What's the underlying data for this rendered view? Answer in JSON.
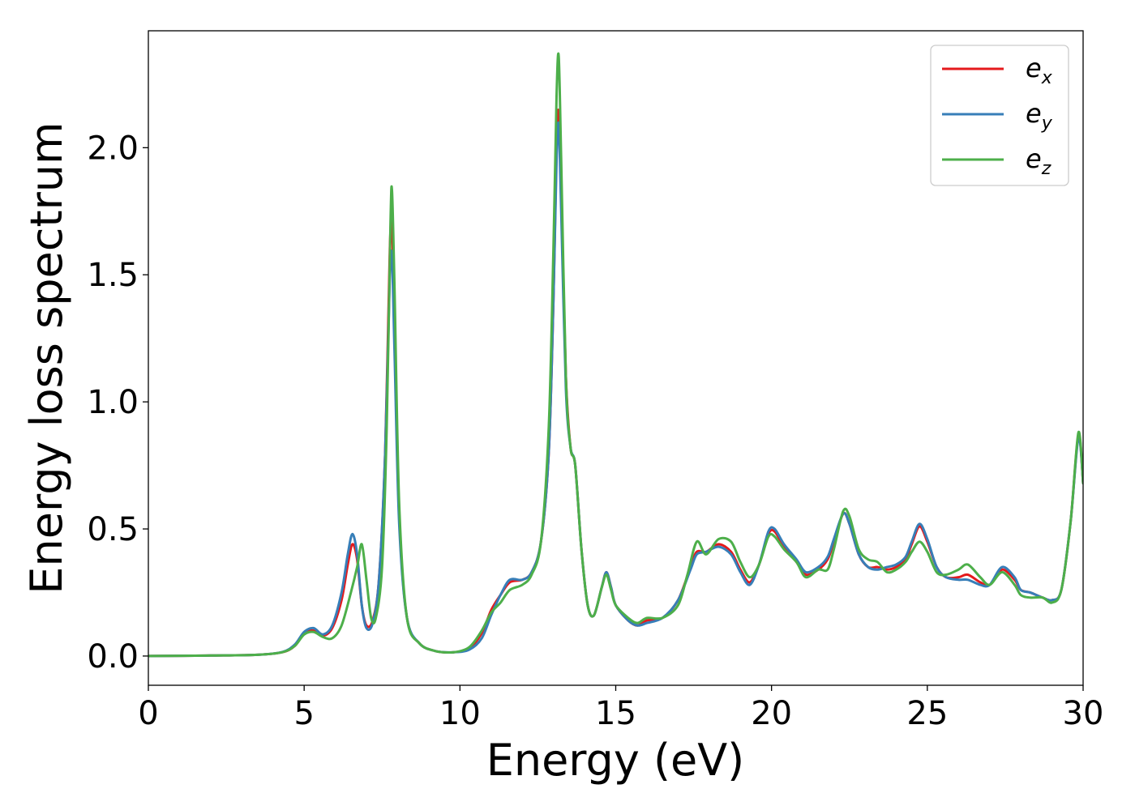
{
  "chart_data": {
    "type": "line",
    "title": "",
    "xlabel": "Energy (eV)",
    "ylabel": "Energy loss spectrum",
    "xlim": [
      0,
      30
    ],
    "ylim": [
      -0.115,
      2.46
    ],
    "xticks": [
      0,
      5,
      10,
      15,
      20,
      25,
      30
    ],
    "xtick_labels": [
      "0",
      "5",
      "10",
      "15",
      "20",
      "25",
      "30"
    ],
    "yticks": [
      0.0,
      0.5,
      1.0,
      1.5,
      2.0
    ],
    "ytick_labels": [
      "0.0",
      "0.5",
      "1.0",
      "1.5",
      "2.0"
    ],
    "grid": false,
    "legend_position": "top-right",
    "series": [
      {
        "name": "e",
        "subscript": "x",
        "color": "#e41a1c",
        "points": [
          [
            0,
            0
          ],
          [
            2,
            0.002
          ],
          [
            3.5,
            0.005
          ],
          [
            4.3,
            0.015
          ],
          [
            4.7,
            0.04
          ],
          [
            5.0,
            0.09
          ],
          [
            5.3,
            0.1
          ],
          [
            5.6,
            0.08
          ],
          [
            5.9,
            0.11
          ],
          [
            6.2,
            0.22
          ],
          [
            6.4,
            0.36
          ],
          [
            6.55,
            0.44
          ],
          [
            6.7,
            0.38
          ],
          [
            6.85,
            0.2
          ],
          [
            7.0,
            0.12
          ],
          [
            7.2,
            0.14
          ],
          [
            7.4,
            0.3
          ],
          [
            7.6,
            0.8
          ],
          [
            7.75,
            1.6
          ],
          [
            7.82,
            1.68
          ],
          [
            7.9,
            1.3
          ],
          [
            8.05,
            0.55
          ],
          [
            8.3,
            0.15
          ],
          [
            8.7,
            0.05
          ],
          [
            9.2,
            0.02
          ],
          [
            9.8,
            0.015
          ],
          [
            10.3,
            0.03
          ],
          [
            10.7,
            0.09
          ],
          [
            11.0,
            0.18
          ],
          [
            11.3,
            0.24
          ],
          [
            11.6,
            0.29
          ],
          [
            12.0,
            0.3
          ],
          [
            12.3,
            0.33
          ],
          [
            12.6,
            0.45
          ],
          [
            12.85,
            0.8
          ],
          [
            13.0,
            1.4
          ],
          [
            13.1,
            2.0
          ],
          [
            13.17,
            2.14
          ],
          [
            13.25,
            1.8
          ],
          [
            13.4,
            1.1
          ],
          [
            13.55,
            0.82
          ],
          [
            13.7,
            0.75
          ],
          [
            13.9,
            0.42
          ],
          [
            14.1,
            0.2
          ],
          [
            14.3,
            0.16
          ],
          [
            14.55,
            0.27
          ],
          [
            14.7,
            0.33
          ],
          [
            14.85,
            0.27
          ],
          [
            15.0,
            0.2
          ],
          [
            15.4,
            0.14
          ],
          [
            15.7,
            0.12
          ],
          [
            16.0,
            0.14
          ],
          [
            16.5,
            0.15
          ],
          [
            17.0,
            0.22
          ],
          [
            17.4,
            0.35
          ],
          [
            17.6,
            0.41
          ],
          [
            17.9,
            0.41
          ],
          [
            18.3,
            0.44
          ],
          [
            18.7,
            0.41
          ],
          [
            19.0,
            0.34
          ],
          [
            19.3,
            0.29
          ],
          [
            19.6,
            0.36
          ],
          [
            19.9,
            0.48
          ],
          [
            20.1,
            0.49
          ],
          [
            20.4,
            0.43
          ],
          [
            20.8,
            0.37
          ],
          [
            21.1,
            0.32
          ],
          [
            21.5,
            0.34
          ],
          [
            21.8,
            0.38
          ],
          [
            22.0,
            0.45
          ],
          [
            22.3,
            0.56
          ],
          [
            22.5,
            0.52
          ],
          [
            22.8,
            0.4
          ],
          [
            23.1,
            0.35
          ],
          [
            23.4,
            0.35
          ],
          [
            23.7,
            0.34
          ],
          [
            24.0,
            0.35
          ],
          [
            24.3,
            0.38
          ],
          [
            24.5,
            0.44
          ],
          [
            24.75,
            0.51
          ],
          [
            25.0,
            0.45
          ],
          [
            25.3,
            0.35
          ],
          [
            25.6,
            0.31
          ],
          [
            26.0,
            0.31
          ],
          [
            26.3,
            0.32
          ],
          [
            26.7,
            0.29
          ],
          [
            27.0,
            0.28
          ],
          [
            27.4,
            0.34
          ],
          [
            27.8,
            0.3
          ],
          [
            28.0,
            0.26
          ],
          [
            28.3,
            0.25
          ],
          [
            28.7,
            0.23
          ],
          [
            29.0,
            0.22
          ],
          [
            29.3,
            0.26
          ],
          [
            29.6,
            0.53
          ],
          [
            29.85,
            0.87
          ],
          [
            30.0,
            0.68
          ]
        ]
      },
      {
        "name": "e",
        "subscript": "y",
        "color": "#377eb8",
        "points": [
          [
            0,
            0
          ],
          [
            2,
            0.002
          ],
          [
            3.5,
            0.005
          ],
          [
            4.3,
            0.016
          ],
          [
            4.7,
            0.045
          ],
          [
            5.0,
            0.095
          ],
          [
            5.3,
            0.11
          ],
          [
            5.6,
            0.085
          ],
          [
            5.9,
            0.12
          ],
          [
            6.2,
            0.25
          ],
          [
            6.4,
            0.4
          ],
          [
            6.55,
            0.48
          ],
          [
            6.7,
            0.4
          ],
          [
            6.85,
            0.2
          ],
          [
            7.0,
            0.11
          ],
          [
            7.2,
            0.13
          ],
          [
            7.4,
            0.3
          ],
          [
            7.6,
            0.8
          ],
          [
            7.75,
            1.5
          ],
          [
            7.82,
            1.56
          ],
          [
            7.9,
            1.2
          ],
          [
            8.05,
            0.52
          ],
          [
            8.3,
            0.15
          ],
          [
            8.7,
            0.05
          ],
          [
            9.2,
            0.02
          ],
          [
            9.8,
            0.015
          ],
          [
            10.3,
            0.025
          ],
          [
            10.7,
            0.07
          ],
          [
            11.0,
            0.16
          ],
          [
            11.3,
            0.24
          ],
          [
            11.6,
            0.3
          ],
          [
            12.0,
            0.3
          ],
          [
            12.3,
            0.33
          ],
          [
            12.6,
            0.45
          ],
          [
            12.85,
            0.8
          ],
          [
            13.0,
            1.4
          ],
          [
            13.1,
            1.95
          ],
          [
            13.17,
            2.09
          ],
          [
            13.25,
            1.75
          ],
          [
            13.4,
            1.05
          ],
          [
            13.55,
            0.82
          ],
          [
            13.7,
            0.75
          ],
          [
            13.9,
            0.42
          ],
          [
            14.1,
            0.2
          ],
          [
            14.3,
            0.16
          ],
          [
            14.55,
            0.27
          ],
          [
            14.7,
            0.33
          ],
          [
            14.85,
            0.27
          ],
          [
            15.0,
            0.2
          ],
          [
            15.4,
            0.14
          ],
          [
            15.7,
            0.12
          ],
          [
            16.0,
            0.13
          ],
          [
            16.5,
            0.15
          ],
          [
            17.0,
            0.22
          ],
          [
            17.4,
            0.34
          ],
          [
            17.6,
            0.4
          ],
          [
            17.9,
            0.41
          ],
          [
            18.3,
            0.43
          ],
          [
            18.7,
            0.4
          ],
          [
            19.0,
            0.33
          ],
          [
            19.3,
            0.28
          ],
          [
            19.6,
            0.36
          ],
          [
            19.9,
            0.49
          ],
          [
            20.1,
            0.5
          ],
          [
            20.4,
            0.44
          ],
          [
            20.8,
            0.38
          ],
          [
            21.1,
            0.33
          ],
          [
            21.5,
            0.35
          ],
          [
            21.8,
            0.39
          ],
          [
            22.0,
            0.46
          ],
          [
            22.3,
            0.56
          ],
          [
            22.5,
            0.52
          ],
          [
            22.8,
            0.4
          ],
          [
            23.1,
            0.35
          ],
          [
            23.4,
            0.34
          ],
          [
            23.7,
            0.35
          ],
          [
            24.0,
            0.36
          ],
          [
            24.3,
            0.39
          ],
          [
            24.5,
            0.45
          ],
          [
            24.75,
            0.52
          ],
          [
            25.0,
            0.46
          ],
          [
            25.3,
            0.35
          ],
          [
            25.6,
            0.31
          ],
          [
            26.0,
            0.3
          ],
          [
            26.3,
            0.3
          ],
          [
            26.7,
            0.28
          ],
          [
            27.0,
            0.28
          ],
          [
            27.4,
            0.35
          ],
          [
            27.8,
            0.31
          ],
          [
            28.0,
            0.26
          ],
          [
            28.3,
            0.25
          ],
          [
            28.7,
            0.23
          ],
          [
            29.0,
            0.22
          ],
          [
            29.3,
            0.26
          ],
          [
            29.6,
            0.53
          ],
          [
            29.85,
            0.86
          ],
          [
            30.0,
            0.68
          ]
        ]
      },
      {
        "name": "e",
        "subscript": "z",
        "color": "#4daf4a",
        "points": [
          [
            0,
            0
          ],
          [
            2,
            0.002
          ],
          [
            3.5,
            0.005
          ],
          [
            4.3,
            0.015
          ],
          [
            4.7,
            0.04
          ],
          [
            5.0,
            0.085
          ],
          [
            5.3,
            0.095
          ],
          [
            5.6,
            0.075
          ],
          [
            5.9,
            0.07
          ],
          [
            6.2,
            0.12
          ],
          [
            6.5,
            0.25
          ],
          [
            6.7,
            0.35
          ],
          [
            6.85,
            0.44
          ],
          [
            7.0,
            0.3
          ],
          [
            7.15,
            0.15
          ],
          [
            7.3,
            0.15
          ],
          [
            7.5,
            0.35
          ],
          [
            7.65,
            0.9
          ],
          [
            7.77,
            1.7
          ],
          [
            7.82,
            1.83
          ],
          [
            7.9,
            1.45
          ],
          [
            8.05,
            0.6
          ],
          [
            8.3,
            0.15
          ],
          [
            8.7,
            0.05
          ],
          [
            9.2,
            0.02
          ],
          [
            9.8,
            0.015
          ],
          [
            10.3,
            0.035
          ],
          [
            10.7,
            0.1
          ],
          [
            11.0,
            0.17
          ],
          [
            11.3,
            0.21
          ],
          [
            11.6,
            0.26
          ],
          [
            12.0,
            0.28
          ],
          [
            12.3,
            0.32
          ],
          [
            12.6,
            0.45
          ],
          [
            12.85,
            0.9
          ],
          [
            13.0,
            1.6
          ],
          [
            13.1,
            2.2
          ],
          [
            13.17,
            2.36
          ],
          [
            13.25,
            1.95
          ],
          [
            13.4,
            1.1
          ],
          [
            13.55,
            0.82
          ],
          [
            13.7,
            0.75
          ],
          [
            13.9,
            0.42
          ],
          [
            14.1,
            0.2
          ],
          [
            14.3,
            0.16
          ],
          [
            14.55,
            0.27
          ],
          [
            14.7,
            0.32
          ],
          [
            14.85,
            0.26
          ],
          [
            15.0,
            0.2
          ],
          [
            15.4,
            0.15
          ],
          [
            15.7,
            0.13
          ],
          [
            16.0,
            0.15
          ],
          [
            16.5,
            0.15
          ],
          [
            17.0,
            0.2
          ],
          [
            17.3,
            0.32
          ],
          [
            17.6,
            0.45
          ],
          [
            17.9,
            0.4
          ],
          [
            18.3,
            0.46
          ],
          [
            18.7,
            0.45
          ],
          [
            19.0,
            0.37
          ],
          [
            19.3,
            0.31
          ],
          [
            19.6,
            0.36
          ],
          [
            19.9,
            0.47
          ],
          [
            20.1,
            0.47
          ],
          [
            20.4,
            0.42
          ],
          [
            20.8,
            0.37
          ],
          [
            21.1,
            0.31
          ],
          [
            21.5,
            0.34
          ],
          [
            21.8,
            0.34
          ],
          [
            22.0,
            0.42
          ],
          [
            22.3,
            0.57
          ],
          [
            22.5,
            0.55
          ],
          [
            22.8,
            0.42
          ],
          [
            23.1,
            0.38
          ],
          [
            23.4,
            0.37
          ],
          [
            23.7,
            0.33
          ],
          [
            24.0,
            0.34
          ],
          [
            24.3,
            0.37
          ],
          [
            24.5,
            0.41
          ],
          [
            24.75,
            0.45
          ],
          [
            25.0,
            0.41
          ],
          [
            25.3,
            0.33
          ],
          [
            25.6,
            0.32
          ],
          [
            26.0,
            0.34
          ],
          [
            26.3,
            0.36
          ],
          [
            26.7,
            0.31
          ],
          [
            27.0,
            0.28
          ],
          [
            27.4,
            0.33
          ],
          [
            27.8,
            0.28
          ],
          [
            28.0,
            0.24
          ],
          [
            28.3,
            0.23
          ],
          [
            28.7,
            0.23
          ],
          [
            29.0,
            0.21
          ],
          [
            29.3,
            0.26
          ],
          [
            29.6,
            0.53
          ],
          [
            29.85,
            0.88
          ],
          [
            30.0,
            0.68
          ]
        ]
      }
    ]
  }
}
